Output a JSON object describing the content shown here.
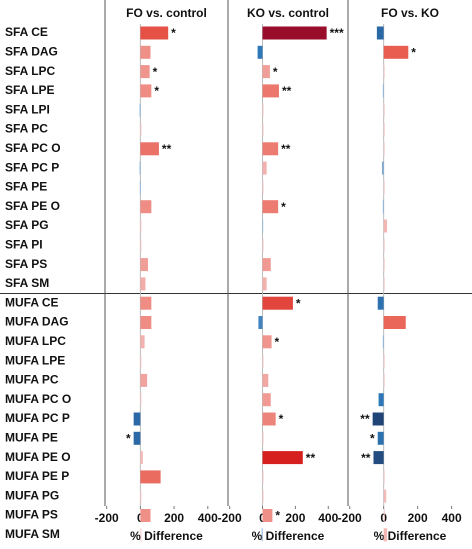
{
  "chart_data": {
    "type": "bar",
    "orientation": "horizontal",
    "categories": [
      "SFA CE",
      "SFA DAG",
      "SFA LPC",
      "SFA LPE",
      "SFA LPI",
      "SFA PC",
      "SFA PC O",
      "SFA PC P",
      "SFA PE",
      "SFA PE O",
      "SFA PG",
      "SFA PI",
      "SFA PS",
      "SFA SM",
      "MUFA CE",
      "MUFA DAG",
      "MUFA LPC",
      "MUFA LPE",
      "MUFA PC",
      "MUFA PC O",
      "MUFA PC P",
      "MUFA PE",
      "MUFA PE O",
      "MUFA PE P",
      "MUFA PG",
      "MUFA PS",
      "MUFA SM"
    ],
    "series": [
      {
        "name": "FO vs. control",
        "values": [
          165,
          60,
          55,
          65,
          -5,
          5,
          110,
          -5,
          -3,
          65,
          2,
          2,
          45,
          30,
          65,
          65,
          25,
          0,
          40,
          0,
          -40,
          -40,
          15,
          120,
          0,
          60,
          0
        ],
        "annotations": [
          "*",
          null,
          "*",
          "*",
          null,
          null,
          "**",
          null,
          null,
          null,
          null,
          null,
          null,
          null,
          null,
          null,
          null,
          null,
          null,
          null,
          null,
          "*",
          null,
          null,
          null,
          null,
          null
        ]
      },
      {
        "name": "KO vs. control",
        "values": [
          390,
          -30,
          45,
          100,
          0,
          0,
          95,
          25,
          0,
          95,
          -2,
          0,
          50,
          25,
          185,
          -25,
          55,
          0,
          35,
          50,
          80,
          0,
          245,
          0,
          0,
          60,
          -5
        ],
        "annotations": [
          "***",
          null,
          "*",
          "**",
          null,
          null,
          "**",
          null,
          null,
          "*",
          null,
          null,
          null,
          null,
          "*",
          null,
          "*",
          null,
          null,
          null,
          "*",
          null,
          "**",
          null,
          null,
          "*",
          null
        ]
      },
      {
        "name": "FO vs. KO",
        "values": [
          -40,
          145,
          0,
          -5,
          0,
          5,
          0,
          -10,
          0,
          -5,
          20,
          0,
          0,
          0,
          -35,
          130,
          -5,
          0,
          0,
          -30,
          -65,
          -35,
          -60,
          0,
          15,
          5,
          20
        ],
        "annotations": [
          null,
          "*",
          null,
          null,
          null,
          null,
          null,
          null,
          null,
          null,
          null,
          null,
          null,
          null,
          null,
          null,
          null,
          null,
          null,
          null,
          "**",
          "*",
          "**",
          null,
          null,
          null,
          null
        ]
      }
    ],
    "xlim": [
      -210,
      520
    ],
    "xticks": [
      -200,
      0,
      200,
      400
    ],
    "xlabel": "% Difference",
    "color_stops": [
      [
        -70,
        "#1f3d6e"
      ],
      [
        -30,
        "#2f78b8"
      ],
      [
        -1,
        "#9dbfdf"
      ],
      [
        0,
        "#f3c9c9"
      ],
      [
        60,
        "#ef9088"
      ],
      [
        150,
        "#e85a4c"
      ],
      [
        250,
        "#d41d1d"
      ],
      [
        400,
        "#930c2b"
      ]
    ]
  }
}
